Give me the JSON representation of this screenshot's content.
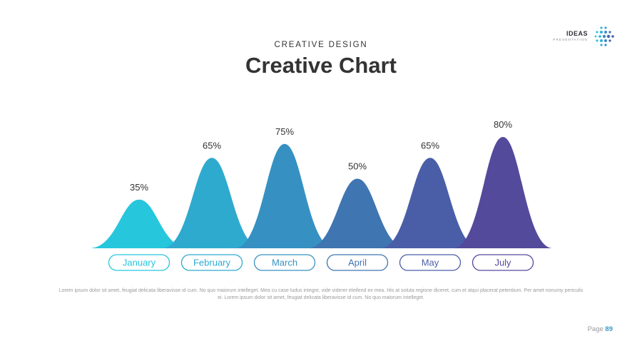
{
  "header": {
    "eyebrow": "CREATIVE DESIGN",
    "title": "Creative Chart"
  },
  "logo": {
    "title": "IDEAS",
    "subtitle": "PRESENTATION"
  },
  "body_text": "Lorem ipsum dolor sit amet, feugiat delicata liberavisse id cum. No quo maiorum intelleget. Mea cu case ludus integre, vide viderer eleifend ex mea. His at soluta regione diceret, cum et atqui placerat petentium. Per amet nonumy periculis ei. Lorem ipsum dolor sit amet, feugiat delicata liberavisse id cum. No quo maiorum intelleget.",
  "page": {
    "label": "Page",
    "number": "89"
  },
  "chart_data": {
    "type": "area",
    "categories": [
      "January",
      "February",
      "March",
      "April",
      "May",
      "July"
    ],
    "values": [
      35,
      65,
      75,
      50,
      65,
      80
    ],
    "data_labels": [
      "35%",
      "65%",
      "75%",
      "50%",
      "65%",
      "80%"
    ],
    "colors": [
      "#26c6dd",
      "#2eaacf",
      "#3691c2",
      "#3f75b1",
      "#4a5ea8",
      "#534a9c"
    ],
    "ylim": [
      0,
      100
    ],
    "title": "",
    "xlabel": "",
    "ylabel": ""
  }
}
